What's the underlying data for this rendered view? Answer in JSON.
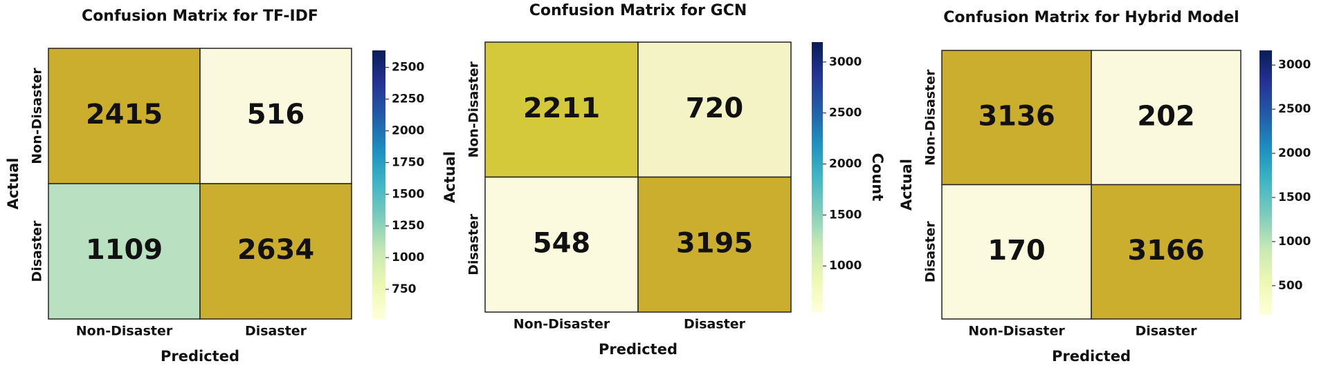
{
  "chart_data": [
    {
      "type": "heatmap",
      "title": "Confusion Matrix for TF-IDF",
      "xlabel": "Predicted",
      "ylabel": "Actual",
      "x_categories": [
        "Non-Disaster",
        "Disaster"
      ],
      "y_categories": [
        "Non-Disaster",
        "Disaster"
      ],
      "values": [
        [
          2415,
          516
        ],
        [
          1109,
          2634
        ]
      ],
      "cell_colors": [
        [
          "#ccae2e",
          "#fbf9dd"
        ],
        [
          "#b9e0c0",
          "#ccae2e"
        ]
      ],
      "clim": [
        516,
        2634
      ],
      "cticks": [
        750,
        1000,
        1250,
        1500,
        1750,
        2000,
        2250,
        2500
      ],
      "colormap": [
        "#ffffd9",
        "#edf8b1",
        "#c7e9b4",
        "#7fcdbb",
        "#41b6c4",
        "#1d91c0",
        "#225ea8",
        "#253494",
        "#081d58"
      ]
    },
    {
      "type": "heatmap",
      "title": "Confusion Matrix for GCN",
      "xlabel": "Predicted",
      "ylabel": "Actual",
      "x_categories": [
        "Non-Disaster",
        "Disaster"
      ],
      "y_categories": [
        "Non-Disaster",
        "Disaster"
      ],
      "values": [
        [
          2211,
          720
        ],
        [
          548,
          3195
        ]
      ],
      "cell_colors": [
        [
          "#d3c93a",
          "#f3f3c6"
        ],
        [
          "#fcfade",
          "#ccae2e"
        ]
      ],
      "clim": [
        548,
        3195
      ],
      "cticks": [
        1000,
        1500,
        2000,
        2500,
        3000
      ],
      "colorbar_label": "Count",
      "colormap": [
        "#ffffd9",
        "#edf8b1",
        "#c7e9b4",
        "#7fcdbb",
        "#41b6c4",
        "#1d91c0",
        "#225ea8",
        "#253494",
        "#081d58"
      ]
    },
    {
      "type": "heatmap",
      "title": "Confusion Matrix for Hybrid Model",
      "xlabel": "Predicted",
      "ylabel": "Actual",
      "x_categories": [
        "Non-Disaster",
        "Disaster"
      ],
      "y_categories": [
        "Non-Disaster",
        "Disaster"
      ],
      "values": [
        [
          3136,
          202
        ],
        [
          170,
          3166
        ]
      ],
      "cell_colors": [
        [
          "#ccae2e",
          "#fbf9dd"
        ],
        [
          "#fcfade",
          "#ccae2e"
        ]
      ],
      "clim": [
        170,
        3166
      ],
      "cticks": [
        500,
        1000,
        1500,
        2000,
        2500,
        3000
      ],
      "colormap": [
        "#ffffd9",
        "#edf8b1",
        "#c7e9b4",
        "#7fcdbb",
        "#41b6c4",
        "#1d91c0",
        "#225ea8",
        "#253494",
        "#081d58"
      ]
    }
  ]
}
